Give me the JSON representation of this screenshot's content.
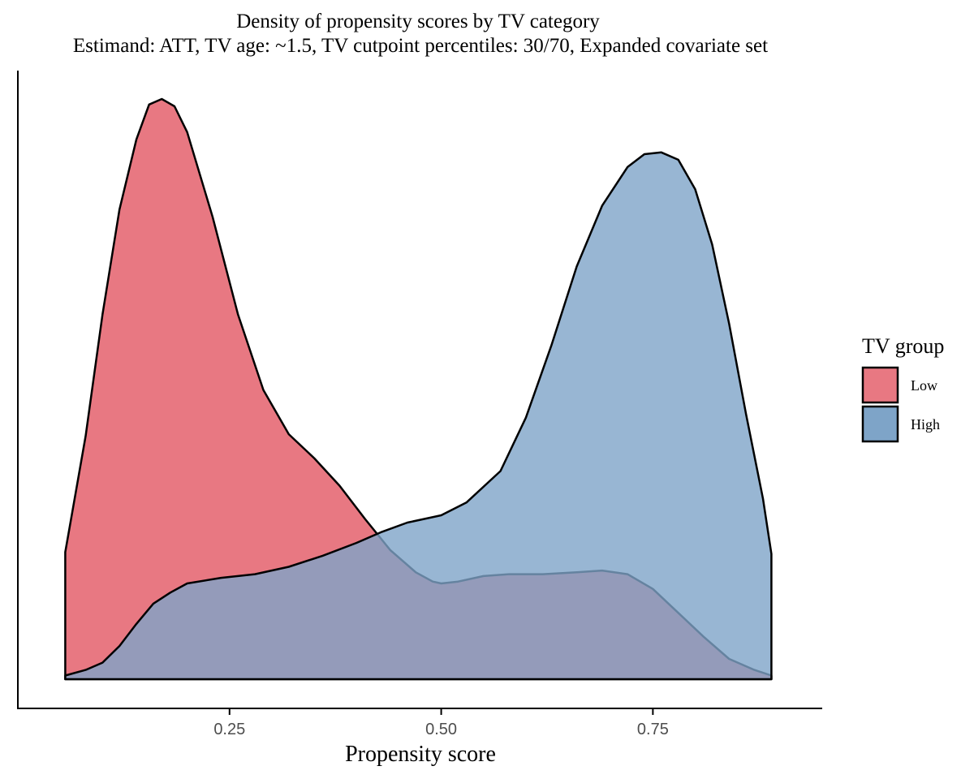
{
  "chart_data": {
    "type": "area",
    "subtype": "density",
    "title": "Density of propensity scores by TV category",
    "subtitle": "Estimand: ATT, TV age: ~1.5, TV cutpoint percentiles: 30/70, Expanded covariate set",
    "xlabel": "Propensity score",
    "ylabel": "",
    "xlim": [
      0.0,
      0.95
    ],
    "ylim": [
      0,
      3.2
    ],
    "x_ticks": [
      0.25,
      0.5,
      0.75
    ],
    "x_tick_labels": [
      "0.25",
      "0.50",
      "0.75"
    ],
    "grid": false,
    "legend": {
      "title": "TV group",
      "placement": "right",
      "entries": [
        "Low",
        "High"
      ]
    },
    "series": [
      {
        "name": "Low",
        "color": "#e87882",
        "points": [
          [
            0.056,
            0.69
          ],
          [
            0.08,
            1.32
          ],
          [
            0.1,
            1.98
          ],
          [
            0.12,
            2.55
          ],
          [
            0.14,
            2.93
          ],
          [
            0.155,
            3.12
          ],
          [
            0.17,
            3.15
          ],
          [
            0.185,
            3.11
          ],
          [
            0.2,
            2.97
          ],
          [
            0.23,
            2.51
          ],
          [
            0.26,
            1.98
          ],
          [
            0.29,
            1.57
          ],
          [
            0.32,
            1.33
          ],
          [
            0.35,
            1.2
          ],
          [
            0.38,
            1.05
          ],
          [
            0.41,
            0.87
          ],
          [
            0.44,
            0.7
          ],
          [
            0.47,
            0.58
          ],
          [
            0.49,
            0.53
          ],
          [
            0.5,
            0.52
          ],
          [
            0.52,
            0.53
          ],
          [
            0.55,
            0.56
          ],
          [
            0.58,
            0.57
          ],
          [
            0.62,
            0.57
          ],
          [
            0.66,
            0.58
          ],
          [
            0.69,
            0.59
          ],
          [
            0.72,
            0.57
          ],
          [
            0.75,
            0.49
          ],
          [
            0.78,
            0.36
          ],
          [
            0.81,
            0.23
          ],
          [
            0.84,
            0.11
          ],
          [
            0.87,
            0.05
          ],
          [
            0.89,
            0.02
          ]
        ]
      },
      {
        "name": "High",
        "color": "#7ea4c8",
        "points": [
          [
            0.056,
            0.02
          ],
          [
            0.08,
            0.05
          ],
          [
            0.1,
            0.09
          ],
          [
            0.12,
            0.18
          ],
          [
            0.14,
            0.3
          ],
          [
            0.16,
            0.41
          ],
          [
            0.18,
            0.47
          ],
          [
            0.2,
            0.52
          ],
          [
            0.24,
            0.55
          ],
          [
            0.28,
            0.57
          ],
          [
            0.32,
            0.61
          ],
          [
            0.36,
            0.67
          ],
          [
            0.4,
            0.74
          ],
          [
            0.43,
            0.8
          ],
          [
            0.46,
            0.85
          ],
          [
            0.5,
            0.89
          ],
          [
            0.53,
            0.96
          ],
          [
            0.57,
            1.13
          ],
          [
            0.6,
            1.42
          ],
          [
            0.63,
            1.81
          ],
          [
            0.66,
            2.24
          ],
          [
            0.69,
            2.57
          ],
          [
            0.72,
            2.78
          ],
          [
            0.74,
            2.85
          ],
          [
            0.76,
            2.86
          ],
          [
            0.78,
            2.82
          ],
          [
            0.8,
            2.66
          ],
          [
            0.82,
            2.36
          ],
          [
            0.84,
            1.93
          ],
          [
            0.86,
            1.44
          ],
          [
            0.88,
            0.98
          ],
          [
            0.89,
            0.68
          ]
        ]
      }
    ]
  }
}
